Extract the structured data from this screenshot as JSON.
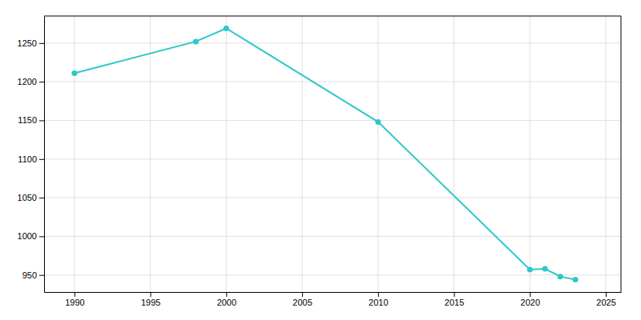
{
  "chart_data": {
    "type": "line",
    "x": [
      1990,
      1998,
      2000,
      2010,
      2020,
      2021,
      2022,
      2023
    ],
    "values": [
      1211,
      1252,
      1269,
      1148,
      957,
      958,
      948,
      944
    ],
    "color": "#2ec8c8",
    "marker": "circle",
    "xlim": [
      1988,
      2026
    ],
    "ylim": [
      928,
      1285
    ],
    "xticks": [
      1990,
      1995,
      2000,
      2005,
      2010,
      2015,
      2020,
      2025
    ],
    "yticks": [
      950,
      1000,
      1050,
      1100,
      1150,
      1200,
      1250
    ],
    "grid": true
  }
}
